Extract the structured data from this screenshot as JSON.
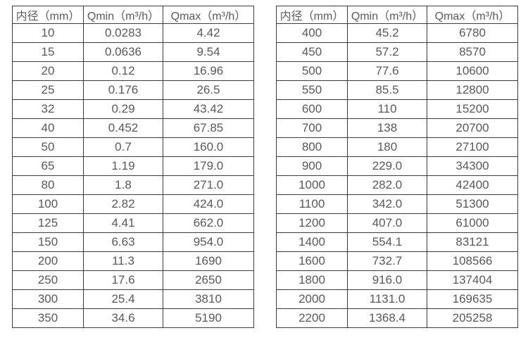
{
  "page": {
    "background_color": "#ffffff",
    "text_color": "#595959",
    "border_color": "#3c3c3c"
  },
  "tables": [
    {
      "name": "flow-rate-table-small-diameters",
      "headers": [
        "内径（mm）",
        "Qmin（m³/h）",
        "Qmax（m³/h）"
      ],
      "rows": [
        [
          "10",
          "0.0283",
          "4.42"
        ],
        [
          "15",
          "0.0636",
          "9.54"
        ],
        [
          "20",
          "0.12",
          "16.96"
        ],
        [
          "25",
          "0.176",
          "26.5"
        ],
        [
          "32",
          "0.29",
          "43.42"
        ],
        [
          "40",
          "0.452",
          "67.85"
        ],
        [
          "50",
          "0.7",
          "160.0"
        ],
        [
          "65",
          "1.19",
          "179.0"
        ],
        [
          "80",
          "1.8",
          "271.0"
        ],
        [
          "100",
          "2.82",
          "424.0"
        ],
        [
          "125",
          "4.41",
          "662.0"
        ],
        [
          "150",
          "6.63",
          "954.0"
        ],
        [
          "200",
          "11.3",
          "1690"
        ],
        [
          "250",
          "17.6",
          "2650"
        ],
        [
          "300",
          "25.4",
          "3810"
        ],
        [
          "350",
          "34.6",
          "5190"
        ]
      ]
    },
    {
      "name": "flow-rate-table-large-diameters",
      "headers": [
        "内径（mm）",
        "Qmin（m³/h）",
        "Qmax（m³/h）"
      ],
      "rows": [
        [
          "400",
          "45.2",
          "6780"
        ],
        [
          "450",
          "57.2",
          "8570"
        ],
        [
          "500",
          "77.6",
          "10600"
        ],
        [
          "550",
          "85.5",
          "12800"
        ],
        [
          "600",
          "110",
          "15200"
        ],
        [
          "700",
          "138",
          "20700"
        ],
        [
          "800",
          "180",
          "27100"
        ],
        [
          "900",
          "229.0",
          "34300"
        ],
        [
          "1000",
          "282.0",
          "42400"
        ],
        [
          "1100",
          "342.0",
          "51300"
        ],
        [
          "1200",
          "407.0",
          "61000"
        ],
        [
          "1400",
          "554.1",
          "83121"
        ],
        [
          "1600",
          "732.7",
          "108566"
        ],
        [
          "1800",
          "916.0",
          "137404"
        ],
        [
          "2000",
          "1131.0",
          "169635"
        ],
        [
          "2200",
          "1368.4",
          "205258"
        ]
      ]
    }
  ]
}
